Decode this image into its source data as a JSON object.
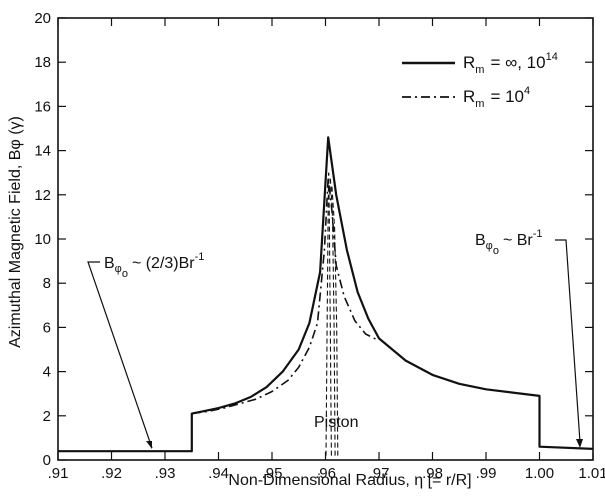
{
  "chart_data": {
    "type": "line",
    "title": "",
    "xlabel": "Non-Dimensional Radius, η [= r/R]",
    "ylabel": "Azimuthal Magnetic Field, Bφ (γ)",
    "xlim": [
      0.91,
      1.01
    ],
    "ylim": [
      0,
      20
    ],
    "grid": false,
    "legend_position": "top-right",
    "x_ticks": [
      0.91,
      0.92,
      0.93,
      0.94,
      0.95,
      0.96,
      0.97,
      0.98,
      0.99,
      1.0,
      1.01
    ],
    "x_tick_labels": [
      ".91",
      ".92",
      ".93",
      ".94",
      ".95",
      ".96",
      ".97",
      ".98",
      ".99",
      "1.00",
      "1.01"
    ],
    "y_ticks": [
      0,
      2,
      4,
      6,
      8,
      10,
      12,
      14,
      16,
      18,
      20
    ],
    "y_tick_labels": [
      "0",
      "2",
      "4",
      "6",
      "8",
      "10",
      "12",
      "14",
      "16",
      "18",
      "20"
    ],
    "series": [
      {
        "name": "Rm = ∞, 10^14",
        "style": "solid",
        "x": [
          0.91,
          0.935,
          0.935,
          0.937,
          0.94,
          0.943,
          0.946,
          0.949,
          0.952,
          0.955,
          0.957,
          0.959,
          0.9605,
          0.962,
          0.964,
          0.966,
          0.968,
          0.97,
          0.975,
          0.98,
          0.985,
          0.99,
          0.995,
          1.0,
          1.0,
          1.01
        ],
        "y": [
          0.4,
          0.4,
          2.1,
          2.2,
          2.35,
          2.55,
          2.85,
          3.3,
          4.0,
          5.0,
          6.2,
          8.5,
          14.6,
          12.0,
          9.5,
          7.6,
          6.4,
          5.5,
          4.5,
          3.85,
          3.45,
          3.2,
          3.05,
          2.9,
          0.6,
          0.5
        ]
      },
      {
        "name": "Rm = 10^4",
        "style": "dashdot",
        "x": [
          0.935,
          0.938,
          0.941,
          0.944,
          0.947,
          0.95,
          0.953,
          0.955,
          0.957,
          0.9585,
          0.9598,
          0.9605,
          0.9612,
          0.962,
          0.9635,
          0.9655,
          0.9675,
          0.97
        ],
        "y": [
          2.1,
          2.2,
          2.35,
          2.55,
          2.75,
          3.1,
          3.6,
          4.2,
          5.1,
          6.2,
          9.5,
          12.8,
          11.3,
          8.8,
          7.4,
          6.3,
          5.7,
          5.4
        ]
      }
    ]
  },
  "legend": {
    "rm_label": "R",
    "rm_sub": "m",
    "entry1_rest": "= ∞, 10",
    "entry1_exp": "14",
    "entry2_rest": "= 10",
    "entry2_exp": "4"
  },
  "annotations": {
    "left_b": "B",
    "left_phi": "φ",
    "left_o": "o",
    "left_rel": "~ (2/3)Br",
    "left_exp": "-1",
    "right_b": "B",
    "right_phi": "φ",
    "right_o": "o",
    "right_rel": "~ Br",
    "right_exp": "-1",
    "piston": "Piston"
  }
}
